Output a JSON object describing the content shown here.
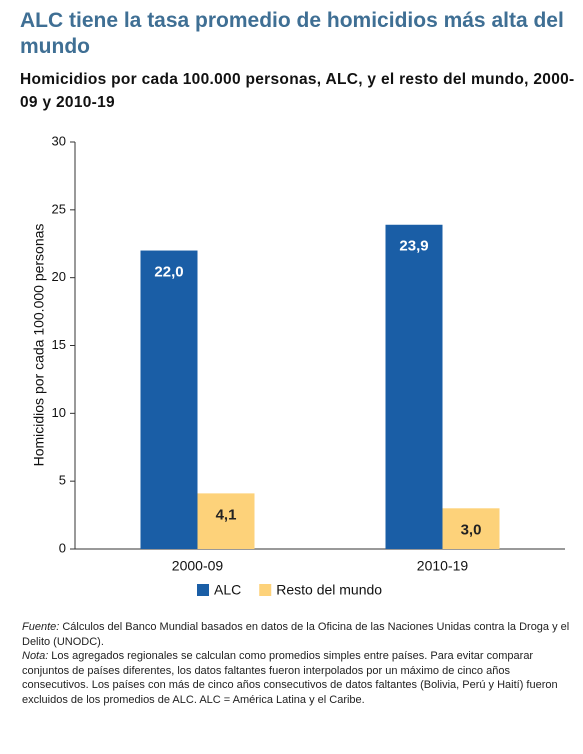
{
  "chart_data": {
    "type": "bar",
    "title": "ALC tiene la tasa promedio de homicidios más alta del mundo",
    "subtitle": "Homicidios por cada 100.000 personas, ALC, y el resto del mundo, 2000-09 y 2010-19",
    "y_label": "Homicidios por cada 100.000 personas",
    "categories": [
      "2000-09",
      "2010-19"
    ],
    "series": [
      {
        "name": "ALC",
        "color": "#1a5ea6",
        "values": [
          22.0,
          23.9
        ],
        "value_labels": [
          "22,0",
          "23,9"
        ]
      },
      {
        "name": "Resto del mundo",
        "color": "#fdd27a",
        "values": [
          4.1,
          3.0
        ],
        "value_labels": [
          "4,1",
          "3,0"
        ]
      }
    ],
    "ylim": [
      0,
      30
    ],
    "yticks": [
      0,
      5,
      10,
      15,
      20,
      25,
      30
    ]
  },
  "notes": [
    {
      "label": "Fuente:",
      "text": "Cálculos del Banco Mundial basados en datos de la Oficina de las Naciones Unidas contra la Droga y el Delito (UNODC)."
    },
    {
      "label": "Nota:",
      "text": "Los agregados regionales se calculan como promedios simples entre países. Para evitar comparar conjuntos de países diferentes, los datos faltantes fueron interpolados por un máximo de cinco años consecutivos. Los países con más de cinco años consecutivos de datos faltantes (Bolivia, Perú y Haití) fueron excluidos de los promedios de ALC. ALC = América Latina y el Caribe."
    }
  ]
}
